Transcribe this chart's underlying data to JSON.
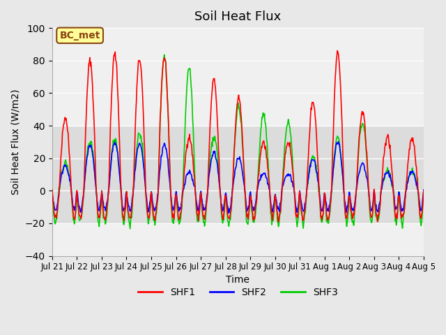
{
  "title": "Soil Heat Flux",
  "xlabel": "Time",
  "ylabel": "Soil Heat Flux (W/m2)",
  "ylim": [
    -40,
    100
  ],
  "yticks": [
    -40,
    -20,
    0,
    20,
    40,
    60,
    80,
    100
  ],
  "n_days": 15,
  "xtick_labels": [
    "Jul 21",
    "Jul 22",
    "Jul 23",
    "Jul 24",
    "Jul 25",
    "Jul 26",
    "Jul 27",
    "Jul 28",
    "Jul 29",
    "Jul 30",
    "Jul 31",
    "Aug 1",
    "Aug 2",
    "Aug 3",
    "Aug 4",
    "Aug 5"
  ],
  "shaded_low": -20,
  "shaded_high": 40,
  "background_color": "#e8e8e8",
  "plot_bg_color": "#f0f0f0",
  "shaded_color": "#dcdcdc",
  "annotation_text": "BC_met",
  "annotation_bg": "#ffff99",
  "annotation_border": "#8b4513",
  "colors": {
    "SHF1": "#ff0000",
    "SHF2": "#0000ff",
    "SHF3": "#00cc00"
  },
  "line_width": 1.2,
  "amp1": [
    45,
    80,
    84,
    81,
    82,
    33,
    68,
    57,
    30,
    30,
    55,
    85,
    48,
    33,
    32
  ],
  "amp3_extra": [
    0,
    0,
    0,
    35,
    82,
    75,
    33,
    52,
    47,
    42,
    0,
    0,
    42,
    0,
    0
  ],
  "night_shf1": 17,
  "night_shf2": 12,
  "night_shf3": 20,
  "pts_per_day": 48
}
